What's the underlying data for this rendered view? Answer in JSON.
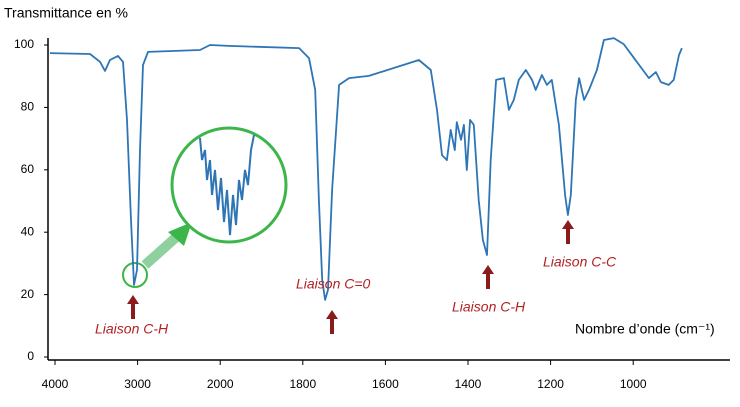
{
  "chart_data": {
    "type": "line",
    "y_label": "Transmittance en %",
    "x_label": "Nombre d’onde (cm⁻¹)",
    "annotations": [
      "Liaison C-H",
      "Liaison C=0",
      "Liaison C-H",
      "Liaison C-C"
    ],
    "x": [
      4061,
      3576,
      3455,
      3395,
      3334,
      3237,
      3177,
      3128,
      3080,
      3044,
      3007,
      2971,
      2935,
      2874,
      2245,
      2124,
      1979,
      1809,
      1785,
      1770,
      1761,
      1753,
      1746,
      1739,
      1729,
      1712,
      1688,
      1640,
      1519,
      1490,
      1475,
      1463,
      1451,
      1442,
      1432,
      1427,
      1417,
      1410,
      1403,
      1395,
      1386,
      1374,
      1364,
      1354,
      1345,
      1332,
      1313,
      1301,
      1289,
      1277,
      1260,
      1245,
      1236,
      1221,
      1209,
      1197,
      1180,
      1165,
      1158,
      1151,
      1139,
      1131,
      1119,
      1107,
      1088,
      1071,
      1047,
      1023,
      962,
      945,
      933,
      914,
      902,
      889,
      882
    ],
    "series": [
      {
        "name": "Transmittance",
        "color": "#2e75b6",
        "values": [
          97.4,
          97.1,
          94.6,
          91.7,
          95.2,
          96.5,
          94.6,
          76.0,
          43.9,
          23.1,
          27.9,
          66.3,
          93.6,
          97.8,
          98.4,
          100,
          99.7,
          99.0,
          95.8,
          85.6,
          50.3,
          24.7,
          18.3,
          21.5,
          53.5,
          87.2,
          89.4,
          90.1,
          95.2,
          92.0,
          79.2,
          64.7,
          63.1,
          72.8,
          66.3,
          75.3,
          69.6,
          74.4,
          59.9,
          76.0,
          74.4,
          50.3,
          37.5,
          32.7,
          63.1,
          88.8,
          89.4,
          79.2,
          82.4,
          88.8,
          92.0,
          88.8,
          85.6,
          90.4,
          87.2,
          88.8,
          74.4,
          51.9,
          45.5,
          51.9,
          82.4,
          89.4,
          82.4,
          85.6,
          92.0,
          101.6,
          102.2,
          100.3,
          89.4,
          91.3,
          88.1,
          87.2,
          88.8,
          96.8,
          99.0
        ]
      }
    ],
    "xlim": [
      4085,
      770
    ],
    "xticks": [
      4000,
      3000,
      2000,
      1800,
      1600,
      1400,
      1200,
      1000
    ],
    "ylim": [
      0,
      105
    ],
    "yticks": [
      0,
      20,
      40,
      60,
      80,
      100
    ]
  }
}
